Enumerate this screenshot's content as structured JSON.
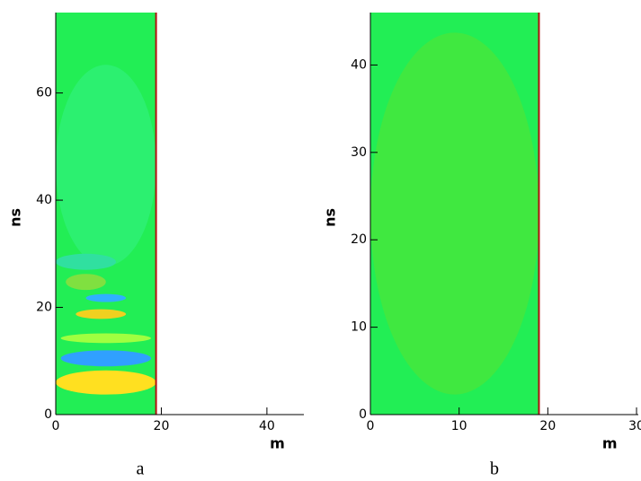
{
  "chart_data": [
    {
      "type": "contour",
      "xlabel": "m",
      "ylabel": "ns",
      "caption": "a",
      "xlim": [
        0,
        47
      ],
      "xticks": [
        0,
        20,
        40
      ],
      "ylim": [
        0,
        75
      ],
      "yticks": [
        0,
        20,
        40,
        60
      ],
      "field_xlim": [
        0,
        19
      ],
      "color": "#22ee55",
      "edge_color": "#b01010"
    },
    {
      "type": "contour",
      "xlabel": "m",
      "ylabel": "ns",
      "caption": "b",
      "xlim": [
        0,
        30.2
      ],
      "xticks": [
        0,
        10,
        20,
        30
      ],
      "ylim": [
        0,
        46
      ],
      "yticks": [
        0,
        10,
        20,
        30,
        40
      ],
      "field_xlim": [
        0,
        19
      ],
      "color": "#22ee55",
      "edge_color": "#b01010"
    }
  ]
}
